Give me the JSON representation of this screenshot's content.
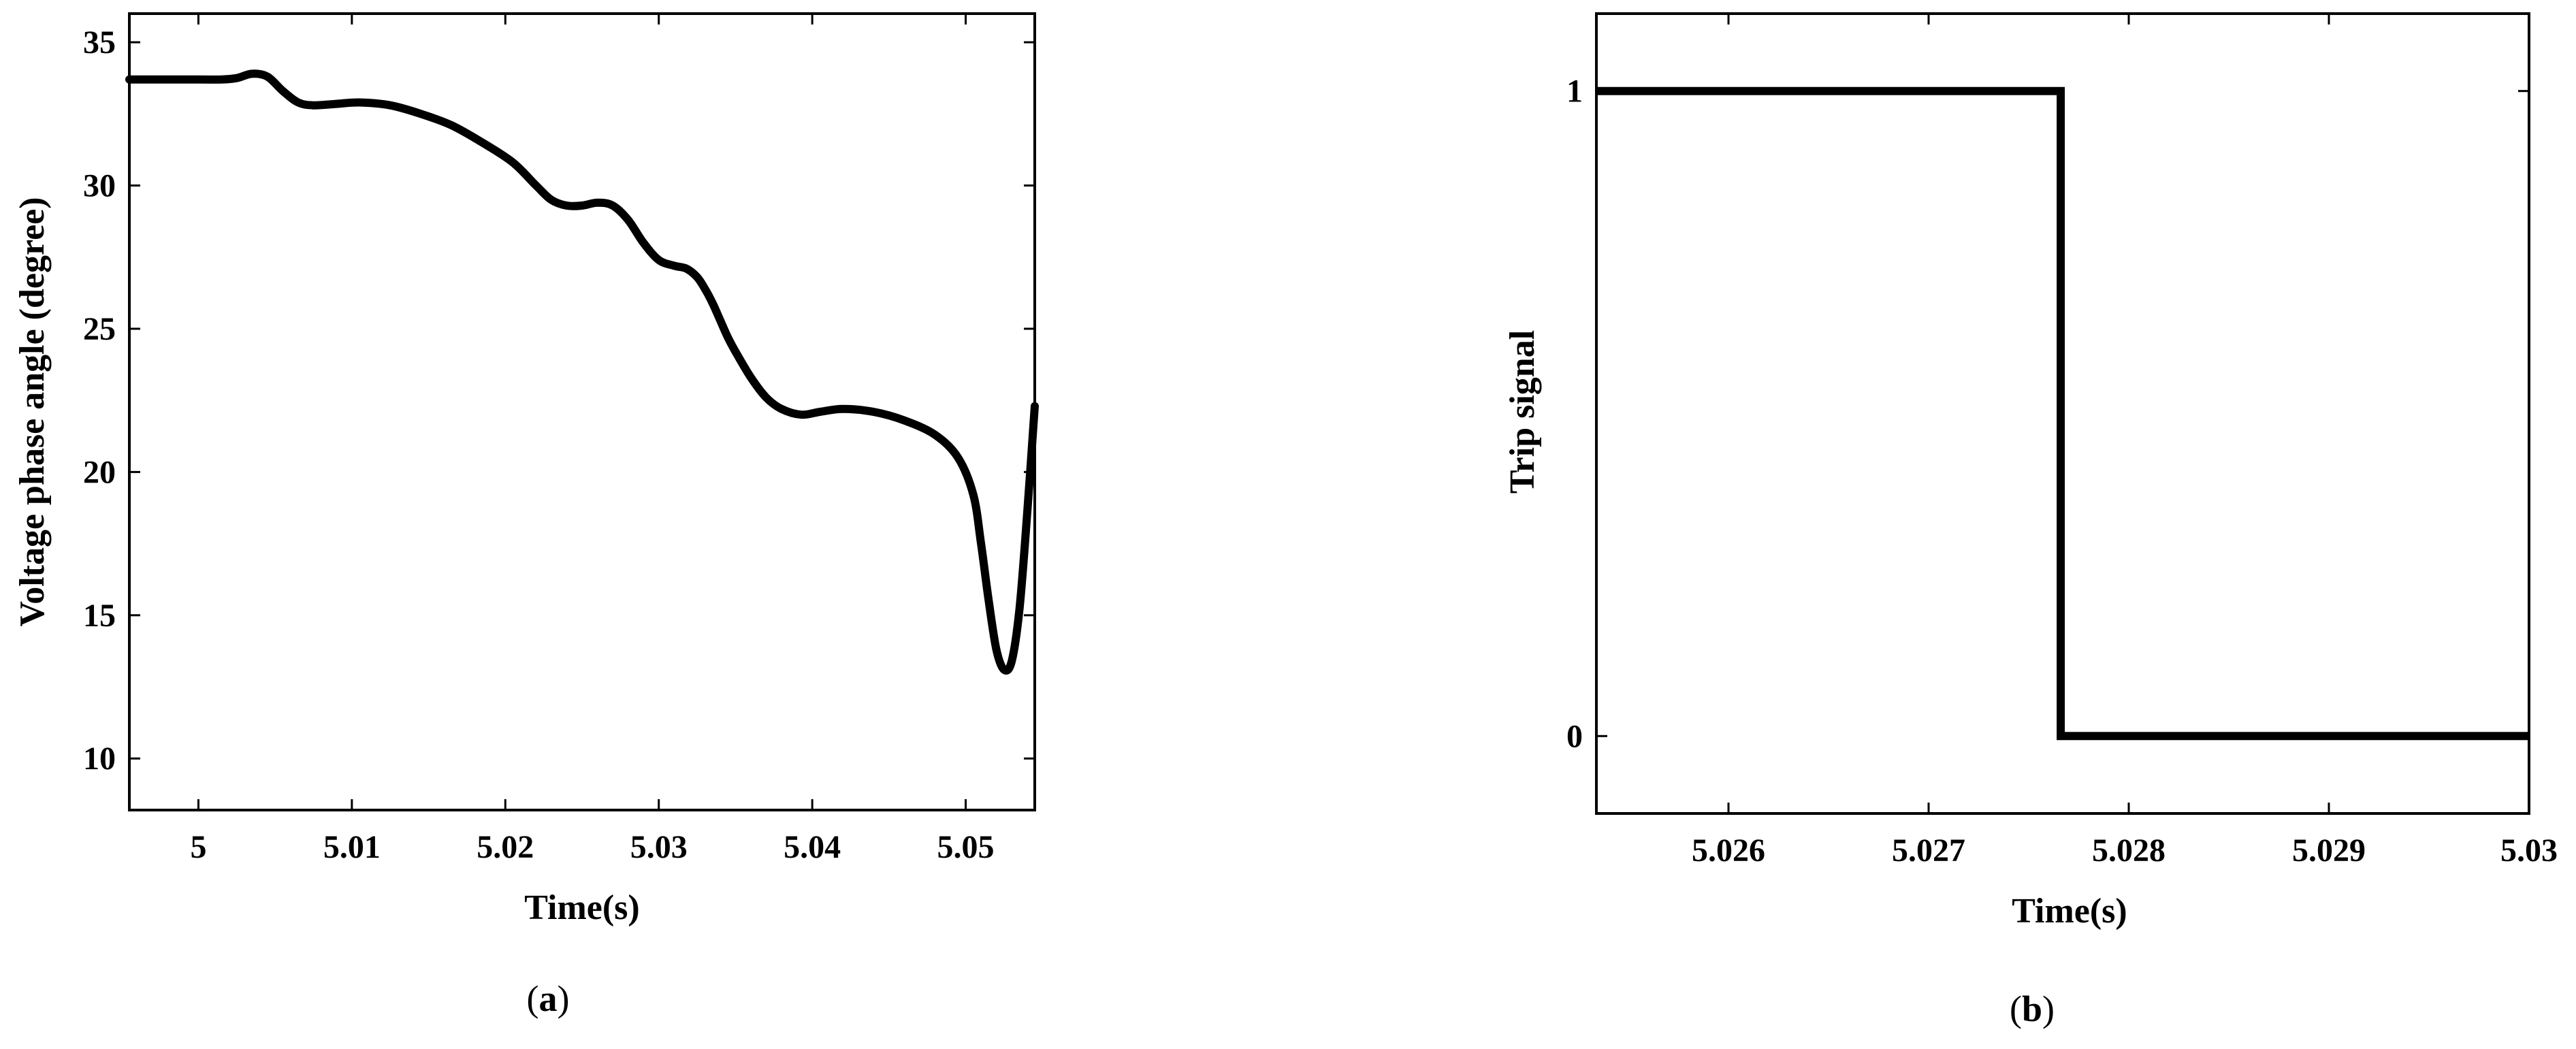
{
  "chart_data": [
    {
      "type": "line",
      "caption": "a",
      "xlabel": "Time(s)",
      "ylabel": "Voltage phase angle (degree)",
      "xlim": [
        4.9955,
        5.0545
      ],
      "ylim": [
        8.2,
        36
      ],
      "xticks": [
        5,
        5.01,
        5.02,
        5.03,
        5.04,
        5.05
      ],
      "xtick_labels": [
        "5",
        "5.01",
        "5.02",
        "5.03",
        "5.04",
        "5.05"
      ],
      "yticks": [
        10,
        15,
        20,
        25,
        30,
        35
      ],
      "ytick_labels": [
        "10",
        "15",
        "20",
        "25",
        "30",
        "35"
      ],
      "grid": false,
      "series": [
        {
          "color": "#000000",
          "x": [
            4.9955,
            5.0,
            5.0015,
            5.0025,
            5.0035,
            5.0045,
            5.0055,
            5.0065,
            5.0075,
            5.009,
            5.0105,
            5.0125,
            5.0145,
            5.0165,
            5.0185,
            5.0205,
            5.022,
            5.023,
            5.024,
            5.025,
            5.026,
            5.027,
            5.028,
            5.029,
            5.03,
            5.031,
            5.0318,
            5.0325,
            5.033,
            5.0335,
            5.034,
            5.0345,
            5.035,
            5.036,
            5.037,
            5.038,
            5.0393,
            5.0405,
            5.042,
            5.044,
            5.046,
            5.048,
            5.0495,
            5.0505,
            5.051,
            5.0515,
            5.052,
            5.0525,
            5.053,
            5.0535,
            5.054,
            5.0545
          ],
          "y": [
            33.7,
            33.7,
            33.7,
            33.75,
            33.9,
            33.8,
            33.3,
            32.9,
            32.8,
            32.85,
            32.9,
            32.8,
            32.5,
            32.1,
            31.5,
            30.8,
            30.0,
            29.5,
            29.3,
            29.3,
            29.4,
            29.3,
            28.8,
            28.0,
            27.4,
            27.2,
            27.1,
            26.8,
            26.4,
            25.9,
            25.3,
            24.7,
            24.2,
            23.3,
            22.6,
            22.2,
            22.0,
            22.1,
            22.2,
            22.1,
            21.8,
            21.3,
            20.5,
            19.2,
            17.5,
            15.5,
            13.8,
            13.1,
            13.4,
            15.2,
            18.5,
            22.3
          ]
        }
      ]
    },
    {
      "type": "line",
      "caption": "b",
      "xlabel": "Time(s)",
      "ylabel": "Trip signal",
      "xlim": [
        5.02534,
        5.03
      ],
      "ylim": [
        -0.12,
        1.12
      ],
      "xticks": [
        5.026,
        5.027,
        5.028,
        5.029,
        5.03
      ],
      "xtick_labels": [
        "5.026",
        "5.027",
        "5.028",
        "5.029",
        "5.03"
      ],
      "yticks": [
        0,
        1
      ],
      "ytick_labels": [
        "0",
        "1"
      ],
      "grid": false,
      "series": [
        {
          "color": "#000000",
          "x": [
            5.02534,
            5.02766,
            5.02766,
            5.03
          ],
          "y": [
            1,
            1,
            0,
            0
          ]
        }
      ]
    }
  ]
}
